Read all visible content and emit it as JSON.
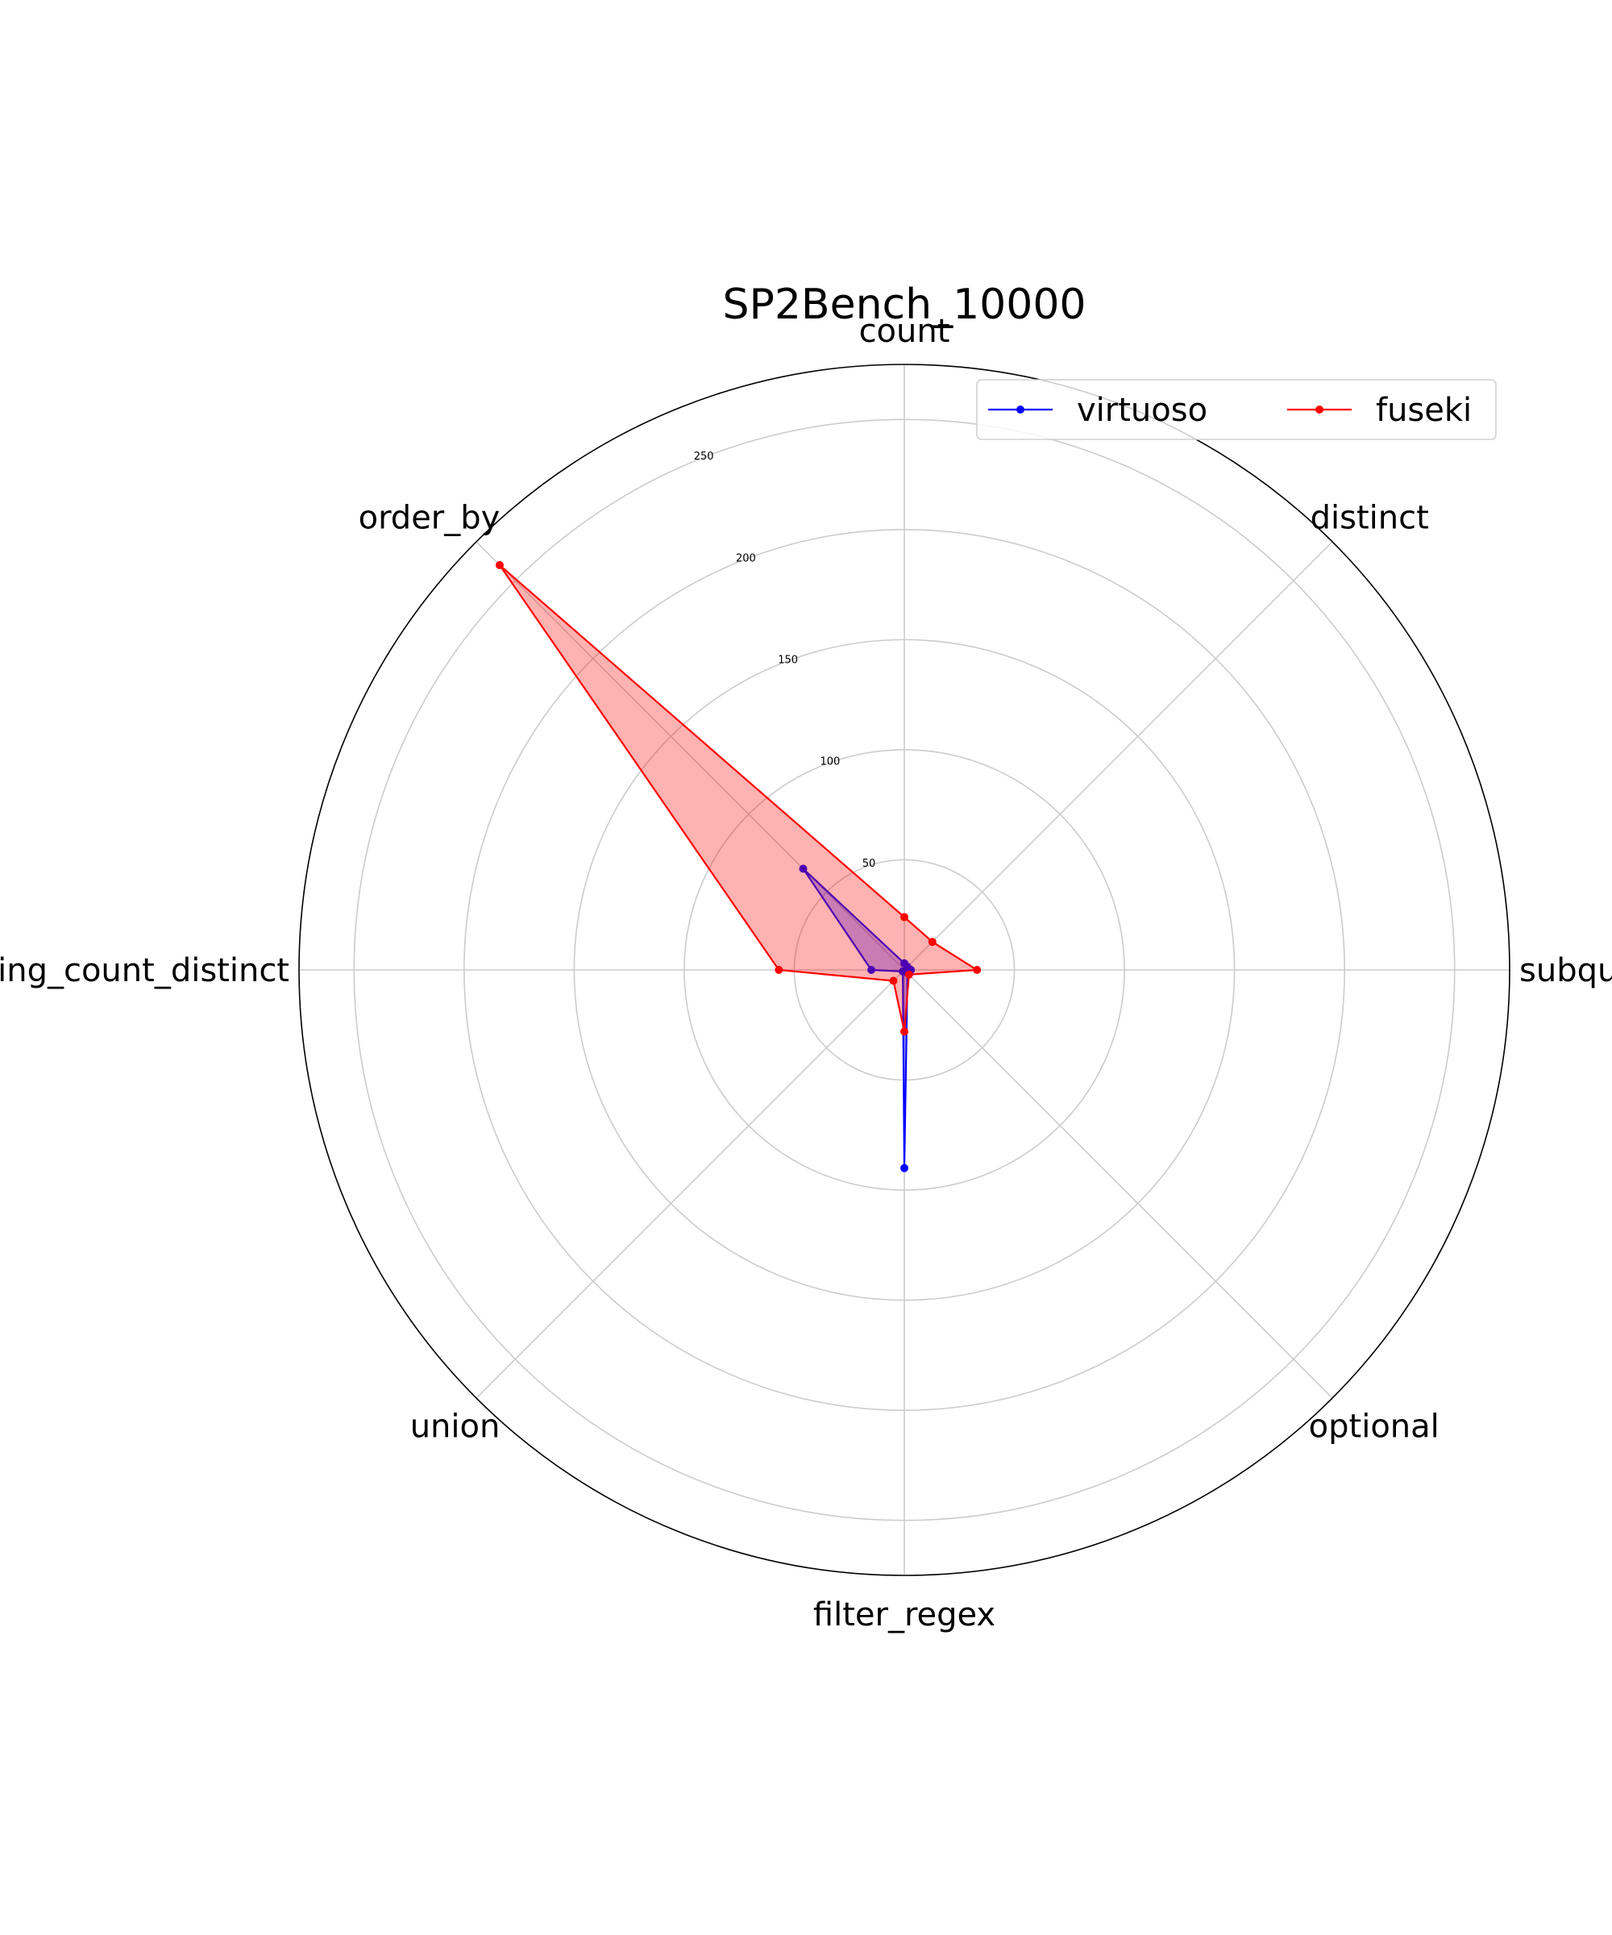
{
  "chart_data": {
    "type": "radar",
    "title": "SP2Bench_10000",
    "axes": [
      "count",
      "distinct",
      "subquery",
      "optional",
      "filter_regex",
      "union",
      "group_by_having_count_distinct",
      "order_by"
    ],
    "rlim": [
      0,
      275
    ],
    "rticks": [
      50,
      100,
      150,
      200,
      250
    ],
    "grid": true,
    "legend": {
      "position": "top-right",
      "ncol": 2
    },
    "series": [
      {
        "name": "virtuoso",
        "color": "#0000ff",
        "fill": false,
        "values": [
          3,
          2,
          3,
          2,
          90,
          1,
          15,
          65
        ]
      },
      {
        "name": "fuseki",
        "color": "#ff0000",
        "fill": true,
        "fill_color": "#ff0000",
        "fill_opacity": 0.3,
        "values": [
          24,
          18,
          33,
          3,
          28,
          7,
          57,
          260
        ]
      }
    ]
  }
}
